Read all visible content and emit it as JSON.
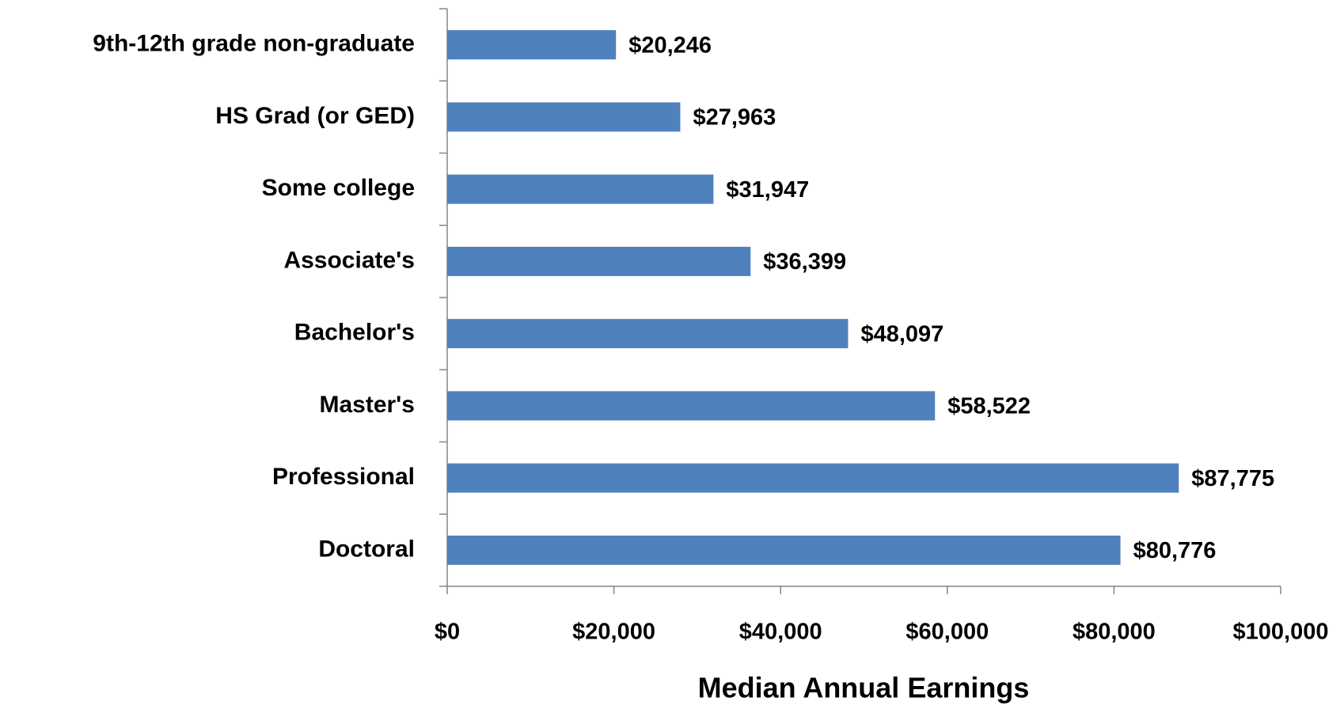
{
  "chart_data": {
    "type": "bar",
    "orientation": "horizontal",
    "x_label": "Median Annual Earnings",
    "categories": [
      "9th-12th grade non-graduate",
      "HS Grad (or GED)",
      "Some college",
      "Associate's",
      "Bachelor's",
      "Master's",
      "Professional",
      "Doctoral"
    ],
    "values": [
      20246,
      27963,
      31947,
      36399,
      48097,
      58522,
      87775,
      80776
    ],
    "value_labels": [
      "$20,246",
      "$27,963",
      "$31,947",
      "$36,399",
      "$48,097",
      "$58,522",
      "$87,775",
      "$80,776"
    ],
    "color": "#4f81bd",
    "xlim": [
      0,
      100000
    ],
    "xticks": [
      {
        "value": 0,
        "label": "$0"
      },
      {
        "value": 20000,
        "label": "$20,000"
      },
      {
        "value": 40000,
        "label": "$40,000"
      },
      {
        "value": 60000,
        "label": "$60,000"
      },
      {
        "value": 80000,
        "label": "$80,000"
      },
      {
        "value": 100000,
        "label": "$100,000"
      }
    ],
    "grid": false
  }
}
